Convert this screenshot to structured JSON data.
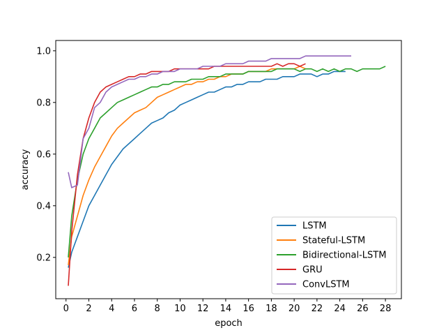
{
  "chart_data": {
    "type": "line",
    "title": "",
    "xlabel": "epoch",
    "ylabel": "accuracy",
    "xlim": [
      -0.9,
      29.4
    ],
    "ylim": [
      0.04,
      1.04
    ],
    "xticks": [
      "0",
      "2",
      "4",
      "6",
      "8",
      "10",
      "12",
      "14",
      "16",
      "18",
      "20",
      "22",
      "24",
      "26",
      "28"
    ],
    "yticks": [
      "0.2",
      "0.4",
      "0.6",
      "0.8",
      "1.0"
    ],
    "legend_position": "lower-right",
    "grid": false,
    "series": [
      {
        "name": "LSTM",
        "color": "#1f77b4",
        "x": [
          0.2,
          0.5,
          1,
          1.5,
          2,
          2.5,
          3,
          3.5,
          4,
          4.5,
          5,
          5.5,
          6,
          6.5,
          7,
          7.5,
          8,
          8.5,
          9,
          9.5,
          10,
          10.5,
          11,
          11.5,
          12,
          12.5,
          13,
          13.5,
          14,
          14.5,
          15,
          15.5,
          16,
          16.5,
          17,
          17.5,
          18,
          18.5,
          19,
          19.5,
          20,
          20.5,
          21,
          21.5,
          22,
          22.5,
          23,
          23.5,
          24,
          24.5
        ],
        "y": [
          0.16,
          0.22,
          0.28,
          0.34,
          0.4,
          0.44,
          0.48,
          0.52,
          0.56,
          0.59,
          0.62,
          0.64,
          0.66,
          0.68,
          0.7,
          0.72,
          0.73,
          0.74,
          0.76,
          0.77,
          0.79,
          0.8,
          0.81,
          0.82,
          0.83,
          0.84,
          0.84,
          0.85,
          0.86,
          0.86,
          0.87,
          0.87,
          0.88,
          0.88,
          0.88,
          0.89,
          0.89,
          0.89,
          0.9,
          0.9,
          0.9,
          0.91,
          0.91,
          0.91,
          0.9,
          0.91,
          0.91,
          0.92,
          0.92,
          0.92
        ]
      },
      {
        "name": "Stateful-LSTM",
        "color": "#ff7f0e",
        "x": [
          0.2,
          0.5,
          1,
          1.5,
          2,
          2.5,
          3,
          3.5,
          4,
          4.5,
          5,
          5.5,
          6,
          6.5,
          7,
          7.5,
          8,
          8.5,
          9,
          9.5,
          10,
          10.5,
          11,
          11.5,
          12,
          12.5,
          13,
          13.5,
          14,
          14.5,
          15,
          15.5,
          16,
          16.5,
          17,
          17.5,
          18,
          18.5,
          19,
          19.5,
          20,
          20.5,
          21
        ],
        "y": [
          0.17,
          0.28,
          0.36,
          0.44,
          0.5,
          0.55,
          0.59,
          0.63,
          0.67,
          0.7,
          0.72,
          0.74,
          0.76,
          0.77,
          0.78,
          0.8,
          0.82,
          0.83,
          0.84,
          0.85,
          0.86,
          0.87,
          0.87,
          0.88,
          0.88,
          0.89,
          0.89,
          0.9,
          0.9,
          0.91,
          0.91,
          0.91,
          0.92,
          0.92,
          0.92,
          0.92,
          0.93,
          0.93,
          0.93,
          0.93,
          0.93,
          0.94,
          0.93
        ]
      },
      {
        "name": "Bidirectional-LSTM",
        "color": "#2ca02c",
        "x": [
          0.2,
          0.5,
          1,
          1.5,
          2,
          2.5,
          3,
          3.5,
          4,
          4.5,
          5,
          5.5,
          6,
          6.5,
          7,
          7.5,
          8,
          8.5,
          9,
          9.5,
          10,
          10.5,
          11,
          11.5,
          12,
          12.5,
          13,
          13.5,
          14,
          14.5,
          15,
          15.5,
          16,
          16.5,
          17,
          17.5,
          18,
          18.5,
          19,
          19.5,
          20,
          20.5,
          21,
          21.5,
          22,
          22.5,
          23,
          23.5,
          24,
          24.5,
          25,
          25.5,
          26,
          26.5,
          27,
          27.5,
          28
        ],
        "y": [
          0.2,
          0.36,
          0.5,
          0.6,
          0.66,
          0.7,
          0.74,
          0.76,
          0.78,
          0.8,
          0.81,
          0.82,
          0.83,
          0.84,
          0.85,
          0.86,
          0.86,
          0.87,
          0.87,
          0.88,
          0.88,
          0.88,
          0.89,
          0.89,
          0.89,
          0.9,
          0.9,
          0.9,
          0.91,
          0.91,
          0.91,
          0.91,
          0.92,
          0.92,
          0.92,
          0.92,
          0.92,
          0.93,
          0.93,
          0.93,
          0.93,
          0.92,
          0.93,
          0.93,
          0.92,
          0.93,
          0.92,
          0.93,
          0.92,
          0.93,
          0.93,
          0.92,
          0.93,
          0.93,
          0.93,
          0.93,
          0.94
        ]
      },
      {
        "name": "GRU",
        "color": "#d62728",
        "x": [
          0.2,
          0.5,
          1,
          1.5,
          2,
          2.5,
          3,
          3.5,
          4,
          4.5,
          5,
          5.5,
          6,
          6.5,
          7,
          7.5,
          8,
          8.5,
          9,
          9.5,
          10,
          10.5,
          11,
          11.5,
          12,
          12.5,
          13,
          13.5,
          14,
          14.5,
          15,
          15.5,
          16,
          16.5,
          17,
          17.5,
          18,
          18.5,
          19,
          19.5,
          20,
          20.5,
          21
        ],
        "y": [
          0.09,
          0.3,
          0.52,
          0.66,
          0.74,
          0.8,
          0.84,
          0.86,
          0.87,
          0.88,
          0.89,
          0.9,
          0.9,
          0.91,
          0.91,
          0.92,
          0.92,
          0.92,
          0.92,
          0.93,
          0.93,
          0.93,
          0.93,
          0.93,
          0.93,
          0.93,
          0.94,
          0.94,
          0.94,
          0.94,
          0.94,
          0.94,
          0.94,
          0.94,
          0.94,
          0.94,
          0.94,
          0.95,
          0.94,
          0.95,
          0.95,
          0.94,
          0.95
        ]
      },
      {
        "name": "ConvLSTM",
        "color": "#9467bd",
        "x": [
          0.2,
          0.5,
          1,
          1.5,
          2,
          2.5,
          3,
          3.5,
          4,
          4.5,
          5,
          5.5,
          6,
          6.5,
          7,
          7.5,
          8,
          8.5,
          9,
          9.5,
          10,
          10.5,
          11,
          11.5,
          12,
          12.5,
          13,
          13.5,
          14,
          14.5,
          15,
          15.5,
          16,
          16.5,
          17,
          17.5,
          18,
          18.5,
          19,
          19.5,
          20,
          20.5,
          21,
          21.5,
          22,
          22.5,
          23,
          23.5,
          24,
          24.5,
          25
        ],
        "y": [
          0.53,
          0.47,
          0.48,
          0.66,
          0.7,
          0.78,
          0.8,
          0.84,
          0.86,
          0.87,
          0.88,
          0.89,
          0.89,
          0.9,
          0.9,
          0.91,
          0.91,
          0.92,
          0.92,
          0.92,
          0.93,
          0.93,
          0.93,
          0.93,
          0.94,
          0.94,
          0.94,
          0.94,
          0.95,
          0.95,
          0.95,
          0.95,
          0.96,
          0.96,
          0.96,
          0.96,
          0.97,
          0.97,
          0.97,
          0.97,
          0.97,
          0.97,
          0.98,
          0.98,
          0.98,
          0.98,
          0.98,
          0.98,
          0.98,
          0.98,
          0.98
        ]
      }
    ]
  }
}
